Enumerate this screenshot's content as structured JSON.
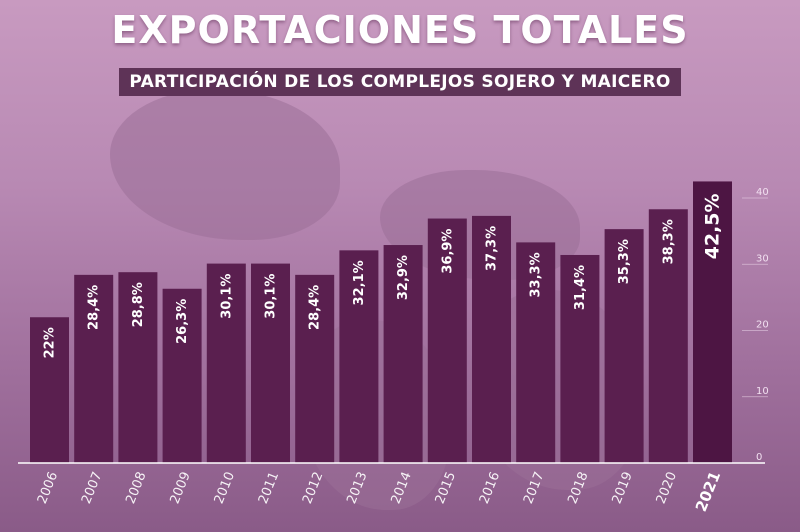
{
  "chart_data": {
    "type": "bar",
    "title": "EXPORTACIONES TOTALES",
    "subtitle": "PARTICIPACIÓN DE LOS COMPLEJOS SOJERO Y MAICERO",
    "categories": [
      "2006",
      "2007",
      "2008",
      "2009",
      "2010",
      "2011",
      "2012",
      "2013",
      "2014",
      "2015",
      "2016",
      "2017",
      "2018",
      "2019",
      "2020",
      "2021"
    ],
    "values": [
      22,
      28.4,
      28.8,
      26.3,
      30.1,
      30.1,
      28.4,
      32.1,
      32.9,
      36.9,
      37.3,
      33.3,
      31.4,
      35.3,
      38.3,
      42.5
    ],
    "value_labels": [
      "22%",
      "28,4%",
      "28,8%",
      "26,3%",
      "30,1%",
      "30,1%",
      "28,4%",
      "32,1%",
      "32,9%",
      "36,9%",
      "37,3%",
      "33,3%",
      "31,4%",
      "35,3%",
      "38,3%",
      "42,5%"
    ],
    "ylim": [
      0,
      40
    ],
    "yticks": [
      0,
      10,
      20,
      30,
      40
    ],
    "ytick_labels": [
      "0",
      "10",
      "20",
      "30",
      "40"
    ],
    "grid": true,
    "legend": "none",
    "colors": {
      "bar": "#5a1f4f",
      "highlight_bar": "#4d1543",
      "subtitle_bg": "#5e3357"
    }
  }
}
